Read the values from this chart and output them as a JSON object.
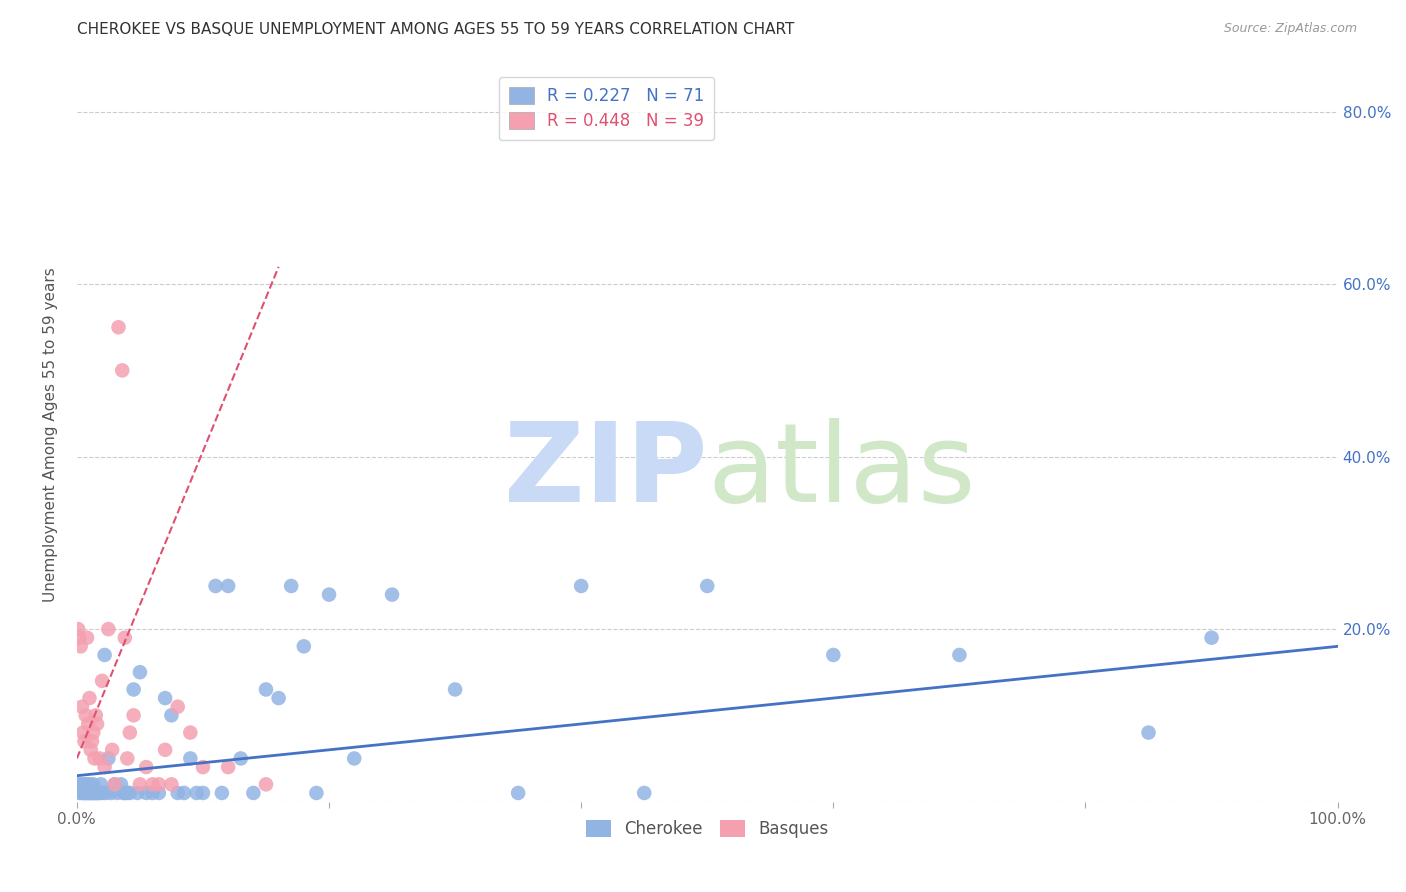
{
  "title": "CHEROKEE VS BASQUE UNEMPLOYMENT AMONG AGES 55 TO 59 YEARS CORRELATION CHART",
  "source": "Source: ZipAtlas.com",
  "ylabel": "Unemployment Among Ages 55 to 59 years",
  "xlabel": "",
  "xlim": [
    0.0,
    1.0
  ],
  "ylim": [
    0.0,
    0.85
  ],
  "xticks": [
    0.0,
    0.2,
    0.4,
    0.6,
    0.8,
    1.0
  ],
  "xticklabels": [
    "0.0%",
    "",
    "",
    "",
    "",
    "100.0%"
  ],
  "yticks": [
    0.0,
    0.2,
    0.4,
    0.6,
    0.8
  ],
  "yticklabels": [
    "",
    "",
    "",
    "",
    ""
  ],
  "right_yticklabels": [
    "",
    "20.0%",
    "40.0%",
    "60.0%",
    "80.0%"
  ],
  "cherokee_R": 0.227,
  "cherokee_N": 71,
  "basque_R": 0.448,
  "basque_N": 39,
  "cherokee_color": "#92b4e3",
  "basque_color": "#f4a0b0",
  "cherokee_line_color": "#4472c4",
  "basque_line_color": "#e05070",
  "watermark_zip": "ZIP",
  "watermark_atlas": "atlas",
  "watermark_color_zip": "#c8daf5",
  "watermark_color_atlas": "#d0e8c8",
  "cherokee_x": [
    0.001,
    0.002,
    0.003,
    0.004,
    0.005,
    0.005,
    0.006,
    0.007,
    0.007,
    0.008,
    0.008,
    0.009,
    0.01,
    0.01,
    0.011,
    0.012,
    0.013,
    0.013,
    0.014,
    0.015,
    0.016,
    0.017,
    0.018,
    0.019,
    0.02,
    0.022,
    0.023,
    0.025,
    0.027,
    0.03,
    0.032,
    0.035,
    0.037,
    0.038,
    0.04,
    0.042,
    0.045,
    0.048,
    0.05,
    0.055,
    0.06,
    0.065,
    0.07,
    0.075,
    0.08,
    0.085,
    0.09,
    0.095,
    0.1,
    0.11,
    0.115,
    0.12,
    0.13,
    0.14,
    0.15,
    0.16,
    0.17,
    0.18,
    0.19,
    0.2,
    0.22,
    0.25,
    0.3,
    0.35,
    0.4,
    0.45,
    0.5,
    0.6,
    0.7,
    0.85,
    0.9
  ],
  "cherokee_y": [
    0.02,
    0.01,
    0.02,
    0.01,
    0.02,
    0.01,
    0.01,
    0.02,
    0.01,
    0.01,
    0.02,
    0.01,
    0.01,
    0.02,
    0.01,
    0.01,
    0.01,
    0.02,
    0.01,
    0.01,
    0.01,
    0.01,
    0.01,
    0.02,
    0.01,
    0.17,
    0.01,
    0.05,
    0.01,
    0.02,
    0.01,
    0.02,
    0.01,
    0.01,
    0.01,
    0.01,
    0.13,
    0.01,
    0.15,
    0.01,
    0.01,
    0.01,
    0.12,
    0.1,
    0.01,
    0.01,
    0.05,
    0.01,
    0.01,
    0.25,
    0.01,
    0.25,
    0.05,
    0.01,
    0.13,
    0.12,
    0.25,
    0.18,
    0.01,
    0.24,
    0.05,
    0.24,
    0.13,
    0.01,
    0.25,
    0.01,
    0.25,
    0.17,
    0.17,
    0.08,
    0.19
  ],
  "basque_x": [
    0.001,
    0.002,
    0.003,
    0.004,
    0.005,
    0.006,
    0.007,
    0.008,
    0.009,
    0.01,
    0.011,
    0.012,
    0.013,
    0.014,
    0.015,
    0.016,
    0.018,
    0.02,
    0.022,
    0.025,
    0.028,
    0.03,
    0.033,
    0.036,
    0.038,
    0.04,
    0.042,
    0.045,
    0.05,
    0.055,
    0.06,
    0.065,
    0.07,
    0.075,
    0.08,
    0.09,
    0.1,
    0.12,
    0.15
  ],
  "basque_y": [
    0.2,
    0.19,
    0.18,
    0.11,
    0.08,
    0.07,
    0.1,
    0.19,
    0.09,
    0.12,
    0.06,
    0.07,
    0.08,
    0.05,
    0.1,
    0.09,
    0.05,
    0.14,
    0.04,
    0.2,
    0.06,
    0.02,
    0.55,
    0.5,
    0.19,
    0.05,
    0.08,
    0.1,
    0.02,
    0.04,
    0.02,
    0.02,
    0.06,
    0.02,
    0.11,
    0.08,
    0.04,
    0.04,
    0.02
  ],
  "cherokee_trendline_x": [
    0.0,
    1.0
  ],
  "cherokee_trendline_y": [
    0.03,
    0.18
  ],
  "basque_trendline_x": [
    0.0,
    0.16
  ],
  "basque_trendline_y": [
    0.05,
    0.62
  ],
  "title_fontsize": 11,
  "axis_label_fontsize": 11,
  "tick_fontsize": 11,
  "legend_fontsize": 12,
  "right_ytick_color": "#4472c4",
  "background_color": "#ffffff"
}
